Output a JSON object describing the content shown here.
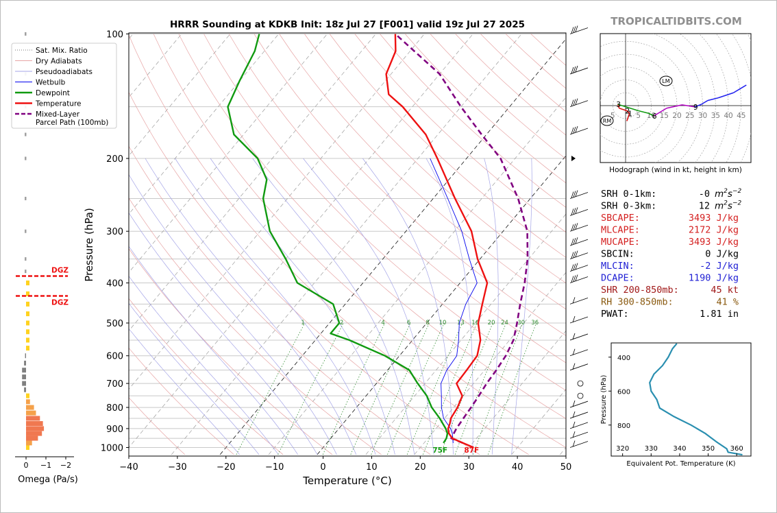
{
  "header": {
    "title": "HRRR Sounding at KDKB Init: 18z Jul 27 [F001] valid 19z Jul 27 2025",
    "watermark": "TROPICALTIDBITS.COM"
  },
  "legend": {
    "items": [
      {
        "label": "Sat. Mix. Ratio",
        "color": "#777777",
        "style": "dotted"
      },
      {
        "label": "Dry Adiabats",
        "color": "#e7a4a4",
        "style": "solid"
      },
      {
        "label": "Pseudoadiabats",
        "color": "#a4a4e7",
        "style": "solid"
      },
      {
        "label": "Wetbulb",
        "color": "#0000ee",
        "style": "solid"
      },
      {
        "label": "Dewpoint",
        "color": "#109a10",
        "style": "thick"
      },
      {
        "label": "Temperature",
        "color": "#ee1111",
        "style": "thick"
      },
      {
        "label": "Mixed-Layer",
        "label2": "Parcel Path (100mb)",
        "color": "#800080",
        "style": "dashed"
      }
    ]
  },
  "chart_data": [
    {
      "type": "line",
      "name": "skewt",
      "xlabel": "Temperature (°C)",
      "ylabel": "Pressure (hPa)",
      "xlim": [
        -40,
        50
      ],
      "ylim": [
        1040,
        100
      ],
      "y_scale": "log",
      "xticks": [
        -40,
        -30,
        -20,
        -10,
        0,
        10,
        20,
        30,
        40,
        50
      ],
      "yticks": [
        100,
        200,
        300,
        400,
        500,
        600,
        700,
        800,
        900,
        1000
      ],
      "temperature": [
        [
          1000,
          31
        ],
        [
          975,
          28
        ],
        [
          950,
          25
        ],
        [
          925,
          23.5
        ],
        [
          900,
          22.5
        ],
        [
          875,
          22
        ],
        [
          850,
          21.3
        ],
        [
          800,
          20.8
        ],
        [
          750,
          19.8
        ],
        [
          700,
          16.5
        ],
        [
          650,
          16.3
        ],
        [
          600,
          16.0
        ],
        [
          550,
          14.0
        ],
        [
          500,
          10.6
        ],
        [
          450,
          8.2
        ],
        [
          400,
          5.6
        ],
        [
          350,
          -0.5
        ],
        [
          300,
          -6.5
        ],
        [
          250,
          -15.5
        ],
        [
          200,
          -26
        ],
        [
          175,
          -32.5
        ],
        [
          150,
          -42
        ],
        [
          140,
          -47
        ],
        [
          125,
          -51
        ],
        [
          110,
          -53
        ],
        [
          100,
          -56
        ]
      ],
      "dewpoint": [
        [
          975,
          24
        ],
        [
          950,
          23.8
        ],
        [
          925,
          23.2
        ],
        [
          900,
          22
        ],
        [
          850,
          19
        ],
        [
          800,
          15.5
        ],
        [
          750,
          12.5
        ],
        [
          700,
          8.5
        ],
        [
          650,
          4.5
        ],
        [
          600,
          -3
        ],
        [
          550,
          -13
        ],
        [
          530,
          -18
        ],
        [
          500,
          -18
        ],
        [
          450,
          -22.5
        ],
        [
          400,
          -33.5
        ],
        [
          350,
          -40
        ],
        [
          300,
          -48
        ],
        [
          250,
          -55
        ],
        [
          225,
          -57.5
        ],
        [
          200,
          -63
        ],
        [
          175,
          -72
        ],
        [
          150,
          -78
        ],
        [
          130,
          -80
        ],
        [
          110,
          -82
        ],
        [
          100,
          -84
        ]
      ],
      "wetbulb": [
        [
          975,
          26
        ],
        [
          925,
          24.2
        ],
        [
          900,
          23.0
        ],
        [
          850,
          19.8
        ],
        [
          800,
          17.5
        ],
        [
          750,
          15.5
        ],
        [
          700,
          13.3
        ],
        [
          650,
          12.2
        ],
        [
          600,
          11.8
        ],
        [
          550,
          9.5
        ],
        [
          500,
          6.7
        ],
        [
          450,
          4.8
        ],
        [
          400,
          3.5
        ],
        [
          350,
          -2.2
        ],
        [
          300,
          -8.5
        ],
        [
          250,
          -17
        ],
        [
          200,
          -27.5
        ]
      ],
      "parcel": [
        [
          975,
          28
        ],
        [
          950,
          24.8
        ],
        [
          925,
          24.5
        ],
        [
          900,
          24.2
        ],
        [
          850,
          23.9
        ],
        [
          800,
          23.6
        ],
        [
          750,
          23.2
        ],
        [
          700,
          22.7
        ],
        [
          650,
          22.4
        ],
        [
          600,
          21.9
        ],
        [
          550,
          20.8
        ],
        [
          500,
          18.6
        ],
        [
          450,
          16.0
        ],
        [
          400,
          13.3
        ],
        [
          350,
          9.8
        ],
        [
          300,
          5.0
        ],
        [
          250,
          -2.5
        ],
        [
          200,
          -13
        ],
        [
          175,
          -21
        ],
        [
          150,
          -30
        ],
        [
          125,
          -40
        ],
        [
          100,
          -56
        ]
      ],
      "surface_labels": {
        "dewpoint": "75F",
        "temperature": "87F"
      },
      "mixing_ratio_labels": [
        "1",
        "2",
        "4",
        "6",
        "8",
        "10",
        "13",
        "16",
        "20",
        "24",
        "30",
        "36"
      ],
      "mixing_ratio_values": [
        1,
        2,
        4,
        6,
        8,
        10,
        13,
        16,
        20,
        24,
        30,
        36
      ]
    },
    {
      "type": "bar",
      "name": "omega",
      "xlabel": "Omega (Pa/s)",
      "xticks": [
        "0",
        "−1",
        "−2"
      ],
      "xlim": [
        0.3,
        -2.2
      ],
      "levels": [
        1000,
        975,
        950,
        925,
        900,
        875,
        850,
        825,
        800,
        775,
        750,
        725,
        700,
        675,
        650,
        625,
        600,
        575,
        550,
        525,
        500,
        475,
        450,
        425,
        400,
        375,
        350,
        300,
        250,
        200,
        175,
        150,
        125,
        100
      ],
      "values": [
        -0.1,
        -0.3,
        -0.6,
        -0.8,
        -0.9,
        -0.85,
        -0.7,
        -0.5,
        -0.4,
        -0.2,
        -0.05,
        0.1,
        0.2,
        0.2,
        0.2,
        0.1,
        0.05,
        -0.05,
        -0.05,
        -0.1,
        -0.05,
        -0.05,
        -0.05,
        -0.05,
        -0.05,
        -0.05,
        0,
        0,
        0,
        0,
        0,
        0,
        0,
        0
      ],
      "dgz": {
        "label_upper": "DGZ",
        "label_lower": "DGZ",
        "top_hpa": 385,
        "bottom_hpa": 430
      }
    },
    {
      "type": "line",
      "name": "hodograph",
      "caption": "Hodograph (wind in kt, height in km)",
      "ring_labels": [
        "5",
        "5",
        "10",
        "15",
        "20",
        "25",
        "30",
        "35",
        "40",
        "45"
      ],
      "height_labels": [
        "1",
        "2",
        "3",
        "6",
        "9"
      ],
      "markers": {
        "lm": "LM",
        "rm": "RM"
      },
      "points": [
        [
          0,
          0.5,
          -6
        ],
        [
          0.5,
          1.5,
          -3
        ],
        [
          1,
          0.5,
          -2
        ],
        [
          1.5,
          -2.5,
          -1
        ],
        [
          3,
          -3,
          0.5
        ],
        [
          4,
          5,
          -2
        ],
        [
          5,
          9,
          -3
        ],
        [
          6,
          11,
          -4
        ],
        [
          7,
          16,
          -1
        ],
        [
          8,
          22,
          0.3
        ],
        [
          9,
          27,
          -0.5
        ],
        [
          9.5,
          29.5,
          0.5
        ],
        [
          10,
          32,
          2
        ],
        [
          11,
          36,
          3
        ],
        [
          12,
          42,
          5
        ],
        [
          13,
          47,
          8
        ]
      ]
    },
    {
      "type": "line",
      "name": "theta_e",
      "xlabel": "Equivalent Pot. Temperature (K)",
      "ylabel": "Pressure (hPa)",
      "xticks": [
        "320",
        "330",
        "340",
        "350",
        "360"
      ],
      "yticks": [
        "400",
        "600",
        "800"
      ],
      "points": [
        [
          975,
          362
        ],
        [
          960,
          357
        ],
        [
          940,
          356.5
        ],
        [
          900,
          353
        ],
        [
          850,
          349
        ],
        [
          800,
          344
        ],
        [
          750,
          338
        ],
        [
          700,
          333
        ],
        [
          650,
          332
        ],
        [
          600,
          330
        ],
        [
          550,
          329.5
        ],
        [
          500,
          331
        ],
        [
          450,
          334
        ],
        [
          400,
          336
        ],
        [
          350,
          337.5
        ],
        [
          320,
          339
        ]
      ]
    }
  ],
  "indices": [
    {
      "label": "SRH 0-1km:",
      "value": "-0",
      "unit": "m2s-2",
      "color": "#000000"
    },
    {
      "label": "SRH 0-3km:",
      "value": "12",
      "unit": "m2s-2",
      "color": "#000000"
    },
    {
      "label": "SBCAPE:",
      "value": "3493 J/kg",
      "color": "#d42020"
    },
    {
      "label": "MLCAPE:",
      "value": "2172 J/kg",
      "color": "#d42020"
    },
    {
      "label": "MUCAPE:",
      "value": "3493 J/kg",
      "color": "#d42020"
    },
    {
      "label": "SBCIN:",
      "value": "0 J/kg",
      "color": "#000000"
    },
    {
      "label": "MLCIN:",
      "value": "-2 J/kg",
      "color": "#2020d4"
    },
    {
      "label": "DCAPE:",
      "value": "1190 J/kg",
      "color": "#2020d4"
    },
    {
      "label": "SHR 200-850mb:",
      "value": "45 kt",
      "color": "#a01818"
    },
    {
      "label": "RH 300-850mb:",
      "value": "41 %",
      "color": "#8a5a10"
    },
    {
      "label": "PWAT:",
      "value": "1.81 in",
      "color": "#000000"
    }
  ]
}
